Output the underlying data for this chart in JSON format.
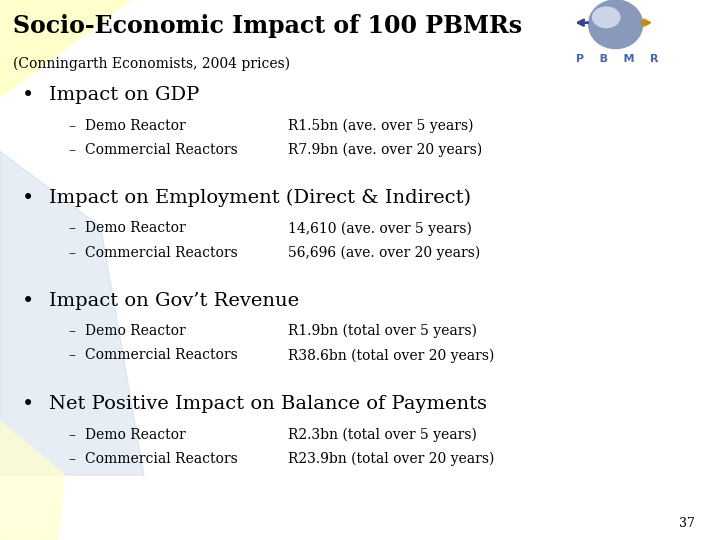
{
  "title": "Socio-Economic Impact of 100 PBMRs",
  "subtitle": "(Conningarth Economists, 2004 prices)",
  "background_color": "#ffffff",
  "slide_number": "37",
  "bullets": [
    {
      "heading": "Impact on GDP",
      "items": [
        {
          "label": "Demo Reactor",
          "value": "R1.5bn (ave. over 5 years)"
        },
        {
          "label": "Commercial Reactors",
          "value": "R7.9bn (ave. over 20 years)"
        }
      ]
    },
    {
      "heading": "Impact on Employment (Direct & Indirect)",
      "items": [
        {
          "label": "Demo Reactor",
          "value": "14,610 (ave. over 5 years)"
        },
        {
          "label": "Commercial Reactors",
          "value": "56,696 (ave. over 20 years)"
        }
      ]
    },
    {
      "heading": "Impact on Gov’t Revenue",
      "items": [
        {
          "label": "Demo Reactor",
          "value": "R1.9bn (total over 5 years)"
        },
        {
          "label": "Commercial Reactors",
          "value": "R38.6bn (total over 20 years)"
        }
      ]
    },
    {
      "heading": "Net Positive Impact on Balance of Payments",
      "items": [
        {
          "label": "Demo Reactor",
          "value": "R2.3bn (total over 5 years)"
        },
        {
          "label": "Commercial Reactors",
          "value": "R23.9bn (total over 20 years)"
        }
      ]
    }
  ],
  "title_color": "#000000",
  "subtitle_color": "#000000",
  "heading_color": "#000000",
  "item_color": "#000000",
  "bullet_color": "#000000",
  "dash_color": "#000000",
  "bg_yellow": "#ffffcc",
  "bg_blue": "#c8d8e8",
  "title_fontsize": 17,
  "subtitle_fontsize": 10,
  "heading_fontsize": 14,
  "item_fontsize": 10,
  "slide_number_fontsize": 9,
  "pbmr_color": "#4466aa"
}
